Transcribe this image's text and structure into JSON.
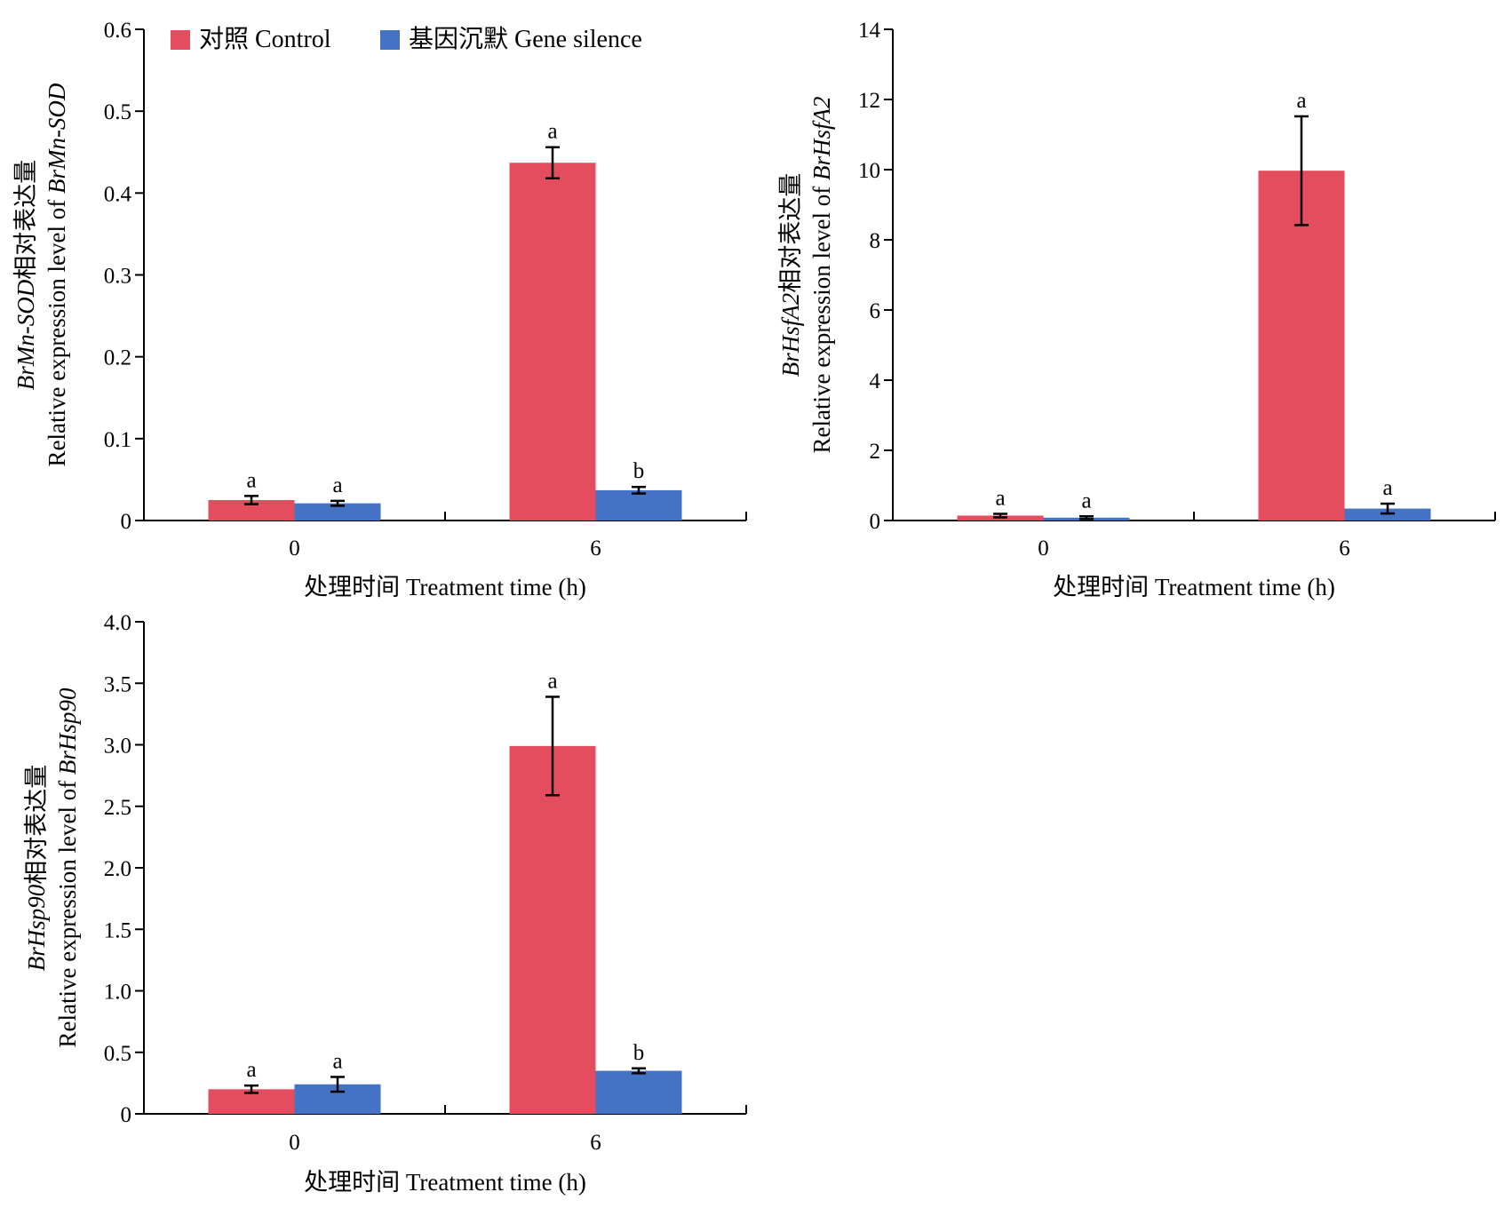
{
  "legend": {
    "items": [
      {
        "label": "对照 Control",
        "color": "#e34d5e"
      },
      {
        "label": "基因沉默 Gene silence",
        "color": "#4472c4"
      }
    ]
  },
  "chart_data": [
    {
      "type": "bar",
      "title": "",
      "categories": [
        "0",
        "6"
      ],
      "xlabel": "处理时间 Treatment time (h)",
      "ylabel_line1": {
        "italic": "BrMn-SOD",
        "rest": "相对表达量"
      },
      "ylabel_line2": {
        "rest": "Relative expression level of ",
        "italic": "BrMn-SOD"
      },
      "ylim": [
        0,
        0.6
      ],
      "yticks": [
        "0",
        "0.1",
        "0.2",
        "0.3",
        "0.4",
        "0.5",
        "0.6"
      ],
      "series": [
        {
          "name": "对照 Control",
          "color": "#e34d5e",
          "values": [
            0.025,
            0.437
          ],
          "errors": [
            0.005,
            0.019
          ],
          "letters": [
            "a",
            "a"
          ]
        },
        {
          "name": "基因沉默 Gene silence",
          "color": "#4472c4",
          "values": [
            0.021,
            0.037
          ],
          "errors": [
            0.003,
            0.004
          ],
          "letters": [
            "a",
            "b"
          ]
        }
      ]
    },
    {
      "type": "bar",
      "title": "",
      "categories": [
        "0",
        "6"
      ],
      "xlabel": "处理时间 Treatment time (h)",
      "ylabel_line1": {
        "italic": "BrHsfA2",
        "rest": "相对表达量"
      },
      "ylabel_line2": {
        "rest": "Relative expression level of ",
        "italic": "BrHsfA2"
      },
      "ylim": [
        0,
        14
      ],
      "yticks": [
        "0",
        "2",
        "4",
        "6",
        "8",
        "10",
        "12",
        "14"
      ],
      "series": [
        {
          "name": "对照 Control",
          "color": "#e34d5e",
          "values": [
            0.14,
            9.97
          ],
          "errors": [
            0.05,
            1.55
          ],
          "letters": [
            "a",
            "a"
          ]
        },
        {
          "name": "基因沉默 Gene silence",
          "color": "#4472c4",
          "values": [
            0.08,
            0.34
          ],
          "errors": [
            0.04,
            0.14
          ],
          "letters": [
            "a",
            "a"
          ]
        }
      ]
    },
    {
      "type": "bar",
      "title": "",
      "categories": [
        "0",
        "6"
      ],
      "xlabel": "处理时间 Treatment time (h)",
      "ylabel_line1": {
        "italic": "BrHsp90",
        "rest": "相对表达量"
      },
      "ylabel_line2": {
        "rest": "Relative expression level of ",
        "italic": "BrHsp90"
      },
      "ylim": [
        0,
        4.0
      ],
      "yticks": [
        "0",
        "0.5",
        "1.0",
        "1.5",
        "2.0",
        "2.5",
        "3.0",
        "3.5",
        "4.0"
      ],
      "series": [
        {
          "name": "对照 Control",
          "color": "#e34d5e",
          "values": [
            0.2,
            2.99
          ],
          "errors": [
            0.03,
            0.4
          ],
          "letters": [
            "a",
            "a"
          ]
        },
        {
          "name": "基因沉默 Gene silence",
          "color": "#4472c4",
          "values": [
            0.24,
            0.35
          ],
          "errors": [
            0.06,
            0.02
          ],
          "letters": [
            "a",
            "b"
          ]
        }
      ]
    }
  ]
}
